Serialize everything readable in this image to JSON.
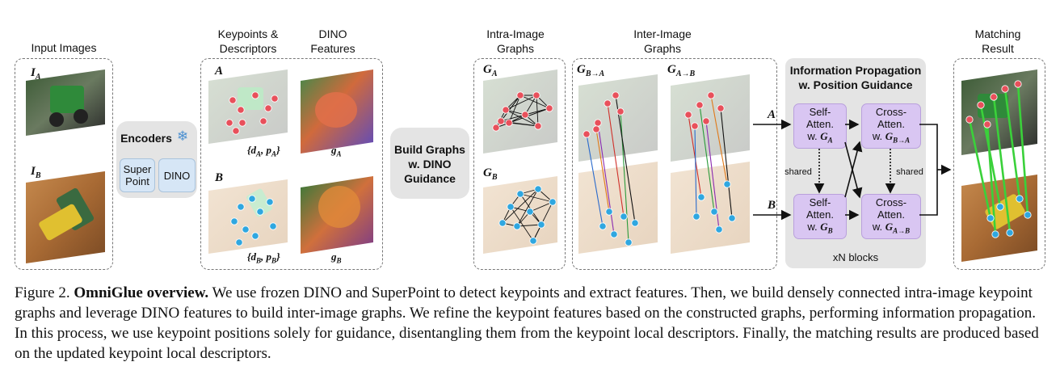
{
  "stages": {
    "input_images": "Input Images",
    "keypoints": "Keypoints &\nDescriptors",
    "dino_features": "DINO\nFeatures",
    "intra_graphs": "Intra-Image\nGraphs",
    "inter_graphs": "Inter-Image\nGraphs",
    "matching": "Matching\nResult"
  },
  "encoders": {
    "title": "Encoders",
    "superpoint": "Super\nPoint",
    "dino": "DINO"
  },
  "build_graphs": "Build Graphs\nw. DINO\nGuidance",
  "info_prop": {
    "title": "Information Propagation\nw. Position Guidance",
    "self_a": "Self-\nAtten.\nw. ",
    "self_a_sym": "G",
    "self_a_sub": "A",
    "cross_a": "Cross-\nAtten.\nw. ",
    "cross_a_sym": "G",
    "cross_a_sub": "B→A",
    "self_b": "Self-\nAtten.\nw. ",
    "self_b_sym": "G",
    "self_b_sub": "B",
    "cross_b": "Cross-\nAtten.\nw. ",
    "cross_b_sym": "G",
    "cross_b_sub": "A→B",
    "shared_left": "shared",
    "shared_right": "shared",
    "blocks": "xN blocks",
    "row_a": "A",
    "row_b": "B"
  },
  "symbols": {
    "ia": "I",
    "ia_sub": "A",
    "ib": "I",
    "ib_sub": "B",
    "ka": "A",
    "kb": "B",
    "desc_a": "{d",
    "desc_a_sub": "A",
    "desc_a_mid": ", p",
    "desc_a_sub2": "A",
    "desc_a_end": "}",
    "desc_b": "{d",
    "desc_b_sub": "B",
    "desc_b_mid": ", p",
    "desc_b_sub2": "B",
    "desc_b_end": "}",
    "ga": "g",
    "ga_sub": "A",
    "gb": "g",
    "gb_sub": "B",
    "g_intra_a": "G",
    "g_intra_a_sub": "A",
    "g_intra_b": "G",
    "g_intra_b_sub": "B",
    "g_ba": "G",
    "g_ba_sub": "B→A",
    "g_ab": "G",
    "g_ab_sub": "A→B"
  },
  "caption": {
    "prefix": "Figure 2. ",
    "title": "OmniGlue overview.",
    "body": " We use frozen DINO and SuperPoint to detect keypoints and extract features. Then, we build densely connected intra-image keypoint graphs and leverage DINO features to build inter-image graphs. We refine the keypoint features based on the constructed graphs, performing information propagation. In this process, we use keypoint positions solely for guidance, disentangling them from the keypoint local descriptors. Finally, the matching results are produced based on the updated keypoint local descriptors."
  },
  "colors": {
    "keypoint_a": "#e8505b",
    "keypoint_b": "#2fa7e0",
    "attention_block": "#d9c6f2",
    "encoder_button": "#d6e6f6",
    "match_line": "#3ad13a"
  }
}
